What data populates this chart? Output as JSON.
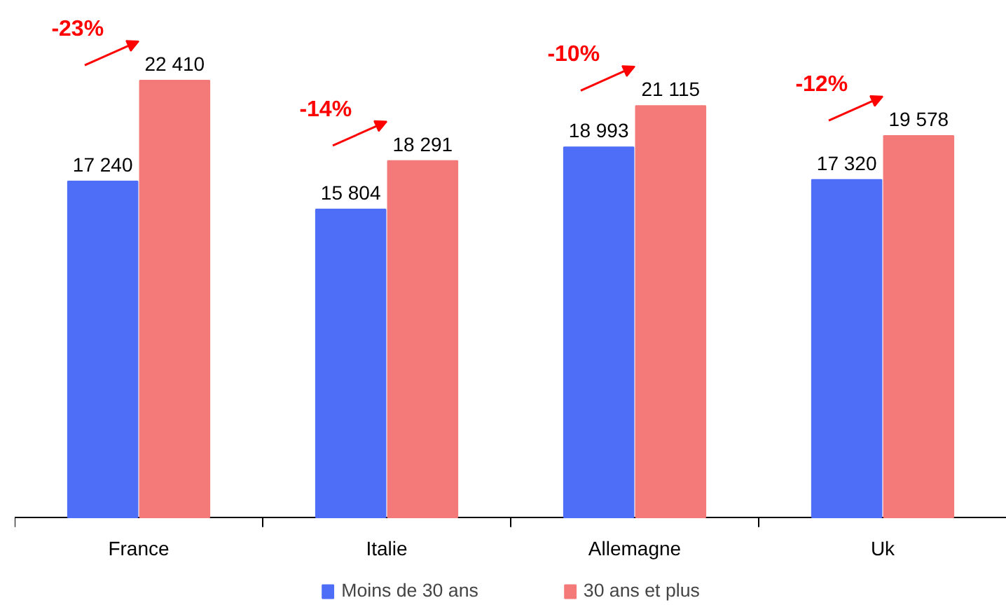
{
  "chart_data": {
    "type": "bar",
    "categories": [
      "France",
      "Italie",
      "Allemagne",
      "Uk"
    ],
    "series": [
      {
        "name": "Moins de 30 ans",
        "color": "#4f6ef7",
        "values": [
          17240,
          15804,
          18993,
          17320
        ],
        "value_labels": [
          "17 240",
          "15 804",
          "18 993",
          "17 320"
        ]
      },
      {
        "name": "30 ans et plus",
        "color": "#f47a7a",
        "values": [
          22410,
          18291,
          21115,
          19578
        ],
        "value_labels": [
          "22 410",
          "18 291",
          "21 115",
          "19 578"
        ]
      }
    ],
    "annotations": [
      "-23%",
      "-14%",
      "-10%",
      "-12%"
    ],
    "legend": "bottom"
  }
}
